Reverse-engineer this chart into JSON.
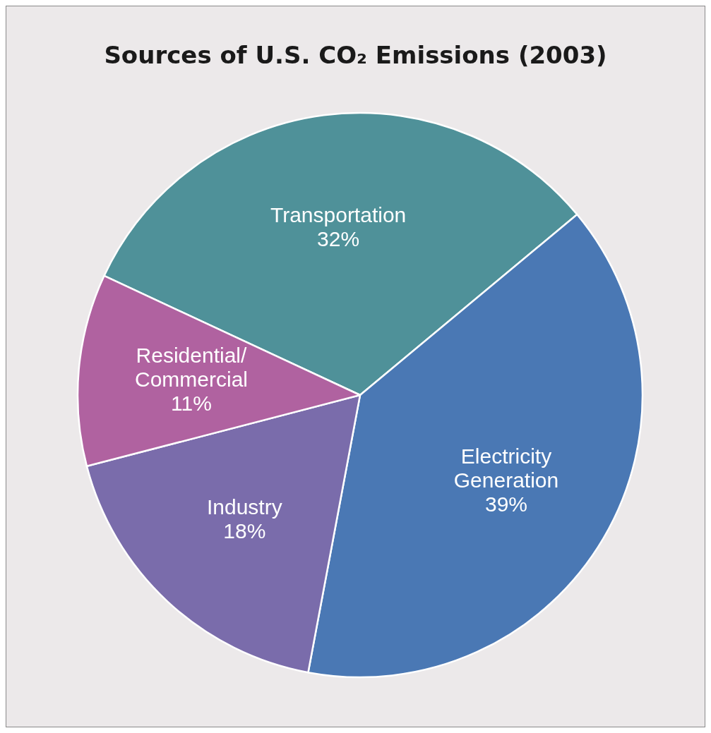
{
  "chart_data": {
    "type": "pie",
    "title": "Sources of U.S. CO₂ Emissions (2003)",
    "categories": [
      "Transportation",
      "Electricity Generation",
      "Industry",
      "Residential/Commercial"
    ],
    "values": [
      32,
      39,
      18,
      11
    ],
    "value_labels": [
      "32%",
      "39%",
      "18%",
      "11%"
    ],
    "colors": [
      "#4f9199",
      "#4a78b4",
      "#7a6cab",
      "#b062a0"
    ]
  }
}
